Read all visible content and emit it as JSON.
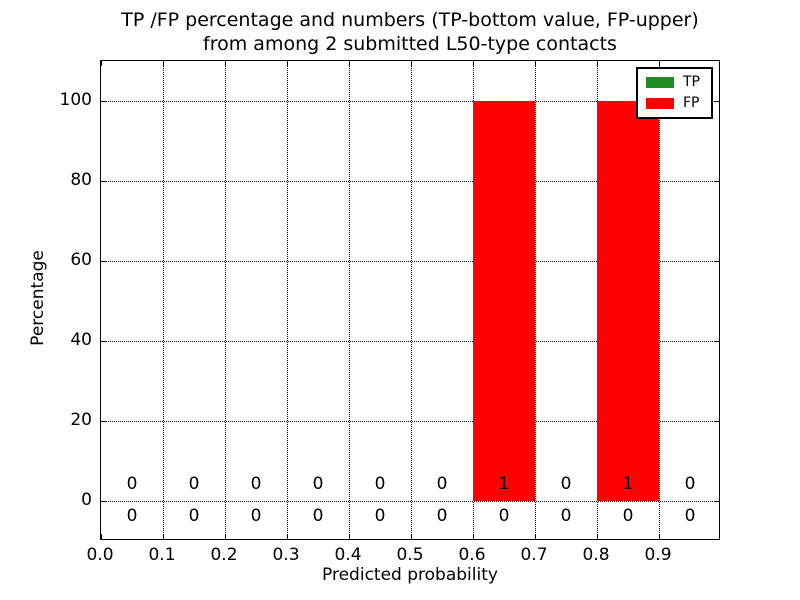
{
  "figure": {
    "title_line1": "TP /FP percentage and numbers (TP-bottom value, FP-upper)",
    "title_line2": "from among 2 submitted L50-type contacts",
    "background_color": "#ffffff"
  },
  "chart_data": {
    "type": "bar",
    "title": "TP /FP percentage and numbers (TP-bottom value, FP-upper)\nfrom among 2 submitted L50-type contacts",
    "xlabel": "Predicted probability",
    "ylabel": "Percentage",
    "xlim": [
      0.0,
      1.0
    ],
    "ylim": [
      -10,
      110
    ],
    "grid": true,
    "grid_style": "dotted",
    "x_tick_values": [
      0.0,
      0.1,
      0.2,
      0.3,
      0.4,
      0.5,
      0.6,
      0.7,
      0.8,
      0.9
    ],
    "x_tick_labels": [
      "0.0",
      "0.1",
      "0.2",
      "0.3",
      "0.4",
      "0.5",
      "0.6",
      "0.7",
      "0.8",
      "0.9"
    ],
    "y_tick_values": [
      0,
      20,
      40,
      60,
      80,
      100
    ],
    "y_tick_labels": [
      "0",
      "20",
      "40",
      "60",
      "80",
      "100"
    ],
    "x_gridlines": [
      0.1,
      0.2,
      0.3,
      0.4,
      0.5,
      0.6,
      0.7,
      0.8,
      0.9
    ],
    "y_gridlines": [
      0,
      20,
      40,
      60,
      80,
      100
    ],
    "bin_edges": [
      0.0,
      0.1,
      0.2,
      0.3,
      0.4,
      0.5,
      0.6,
      0.7,
      0.8,
      0.9,
      1.0
    ],
    "bin_centers": [
      0.05,
      0.15,
      0.25,
      0.35,
      0.45,
      0.55,
      0.65,
      0.75,
      0.85,
      0.95
    ],
    "series": [
      {
        "name": "TP",
        "color": "#228B22",
        "percentages": [
          0,
          0,
          0,
          0,
          0,
          0,
          0,
          0,
          0,
          0
        ],
        "counts": [
          0,
          0,
          0,
          0,
          0,
          0,
          0,
          0,
          0,
          0
        ]
      },
      {
        "name": "FP",
        "color": "#ff0000",
        "percentages": [
          0,
          0,
          0,
          0,
          0,
          0,
          100,
          0,
          100,
          0
        ],
        "counts": [
          0,
          0,
          0,
          0,
          0,
          0,
          1,
          0,
          1,
          0
        ]
      }
    ],
    "count_labels": {
      "fp_row": [
        "0",
        "0",
        "0",
        "0",
        "0",
        "0",
        "1",
        "0",
        "1",
        "0"
      ],
      "tp_row": [
        "0",
        "0",
        "0",
        "0",
        "0",
        "0",
        "0",
        "0",
        "0",
        "0"
      ]
    },
    "legend": {
      "position": "upper right",
      "entries": [
        {
          "label": "TP",
          "color": "#228B22"
        },
        {
          "label": "FP",
          "color": "#ff0000"
        }
      ]
    }
  }
}
